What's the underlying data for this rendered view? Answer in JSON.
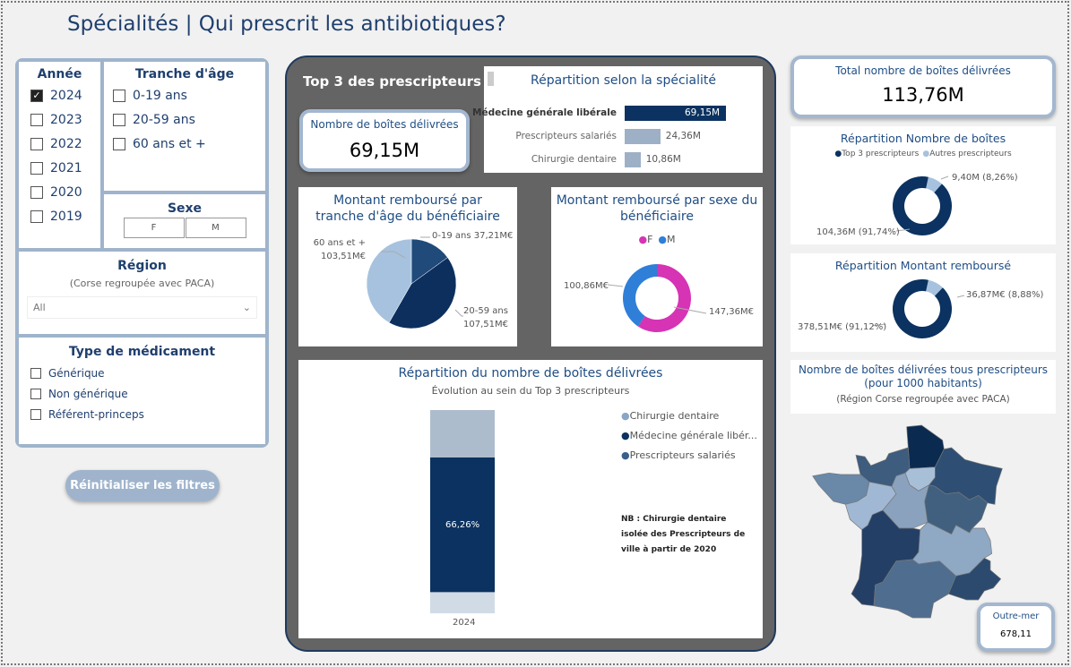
{
  "title": "Spécialités | Qui prescrit les antibiotiques?",
  "filters": {
    "annee": {
      "title": "Année",
      "items": [
        {
          "label": "2024",
          "checked": true
        },
        {
          "label": "2023",
          "checked": false
        },
        {
          "label": "2022",
          "checked": false
        },
        {
          "label": "2021",
          "checked": false
        },
        {
          "label": "2020",
          "checked": false
        },
        {
          "label": "2019",
          "checked": false
        }
      ]
    },
    "tranche": {
      "title": "Tranche d'âge",
      "items": [
        "0-19 ans",
        "20-59 ans",
        "60 ans et +"
      ]
    },
    "sexe": {
      "title": "Sexe",
      "options": [
        "F",
        "M"
      ]
    },
    "region": {
      "title": "Région",
      "subtitle": "(Corse regroupée avec PACA)",
      "value": "All"
    },
    "type": {
      "title": "Type de médicament",
      "items": [
        "Générique",
        "Non générique",
        "Référent-princeps"
      ]
    },
    "reset_label": "Réinitialiser les filtres"
  },
  "top3": {
    "title": "Top 3 des prescripteurs",
    "kpi": {
      "label": "Nombre de boîtes délivrées",
      "value": "69,15M"
    },
    "specialite": {
      "title": "Répartition selon la spécialité",
      "bars": [
        {
          "label": "Médecine générale libérale",
          "value": 69.15,
          "text": "69,15M",
          "color": "#0b3260"
        },
        {
          "label": "Prescripteurs salariés",
          "value": 24.36,
          "text": "24,36M",
          "color": "#9db0c6"
        },
        {
          "label": "Chirurgie dentaire",
          "value": 10.86,
          "text": "10,86M",
          "color": "#9db0c6"
        }
      ]
    },
    "age_pie": {
      "title": "Montant remboursé par tranche d'âge du bénéficiaire",
      "slices": [
        {
          "label": "0-19 ans 37,21M€",
          "value": 37.21,
          "color": "#1f4a7a"
        },
        {
          "label": "20-59 ans 107,51M€",
          "value": 107.51,
          "color": "#0c2f5e"
        },
        {
          "label": "60 ans et + 103,51M€",
          "value": 103.51,
          "color": "#a6c2de"
        }
      ]
    },
    "sexe_donut": {
      "title": "Montant remboursé par sexe du bénéficiaire",
      "legend": [
        "F",
        "M"
      ],
      "slices": [
        {
          "label": "147,36M€",
          "value": 147.36,
          "color": "#d633b5"
        },
        {
          "label": "100,86M€",
          "value": 100.86,
          "color": "#2f7fd8"
        }
      ]
    },
    "stack": {
      "title": "Répartition du nombre de boîtes délivrées",
      "subtitle": "Évolution au sein du Top 3 prescripteurs",
      "category": "2024",
      "data_label": "66,26%",
      "legend": [
        {
          "label": "Chirurgie dentaire",
          "color": "#8aa6c4"
        },
        {
          "label": "Médecine générale libér...",
          "color": "#0b3260"
        },
        {
          "label": "Prescripteurs salariés",
          "color": "#3a5f8a"
        }
      ],
      "segments": [
        {
          "name": "Chirurgie dentaire",
          "value": 10.86,
          "color": "#d0dbe6"
        },
        {
          "name": "Médecine générale libérale",
          "value": 69.15,
          "color": "#0b3260"
        },
        {
          "name": "Prescripteurs salariés",
          "value": 24.36,
          "color": "#adbccc"
        }
      ],
      "note": "NB : Chirurgie dentaire isolée des Prescripteurs de ville à partir de 2020"
    }
  },
  "right": {
    "total": {
      "label": "Total nombre de boîtes délivrées",
      "value": "113,76M"
    },
    "boites": {
      "title": "Répartition Nombre de boîtes",
      "legend": [
        {
          "label": "Top 3 prescripteurs",
          "color": "#0b3260"
        },
        {
          "label": "Autres prescripteurs",
          "color": "#a6c2de"
        }
      ],
      "slices": [
        {
          "label": "9,40M (8,26%)",
          "value": 9.4,
          "color": "#a6c2de"
        },
        {
          "label": "104,36M (91,74%)",
          "value": 104.36,
          "color": "#0b3260"
        }
      ]
    },
    "montant": {
      "title": "Répartition Montant remboursé",
      "slices": [
        {
          "label": "36,87M€ (8,88%)",
          "value": 36.87,
          "color": "#a6c2de"
        },
        {
          "label": "378,51M€ (91,12%)",
          "value": 378.51,
          "color": "#0b3260"
        }
      ]
    },
    "map": {
      "title": "Nombre de boîtes délivrées tous prescripteurs (pour 1000 habitants)",
      "subtitle": "(Région Corse regroupée avec PACA)",
      "outremer": {
        "label": "Outre-mer",
        "value": "678,11"
      }
    }
  }
}
